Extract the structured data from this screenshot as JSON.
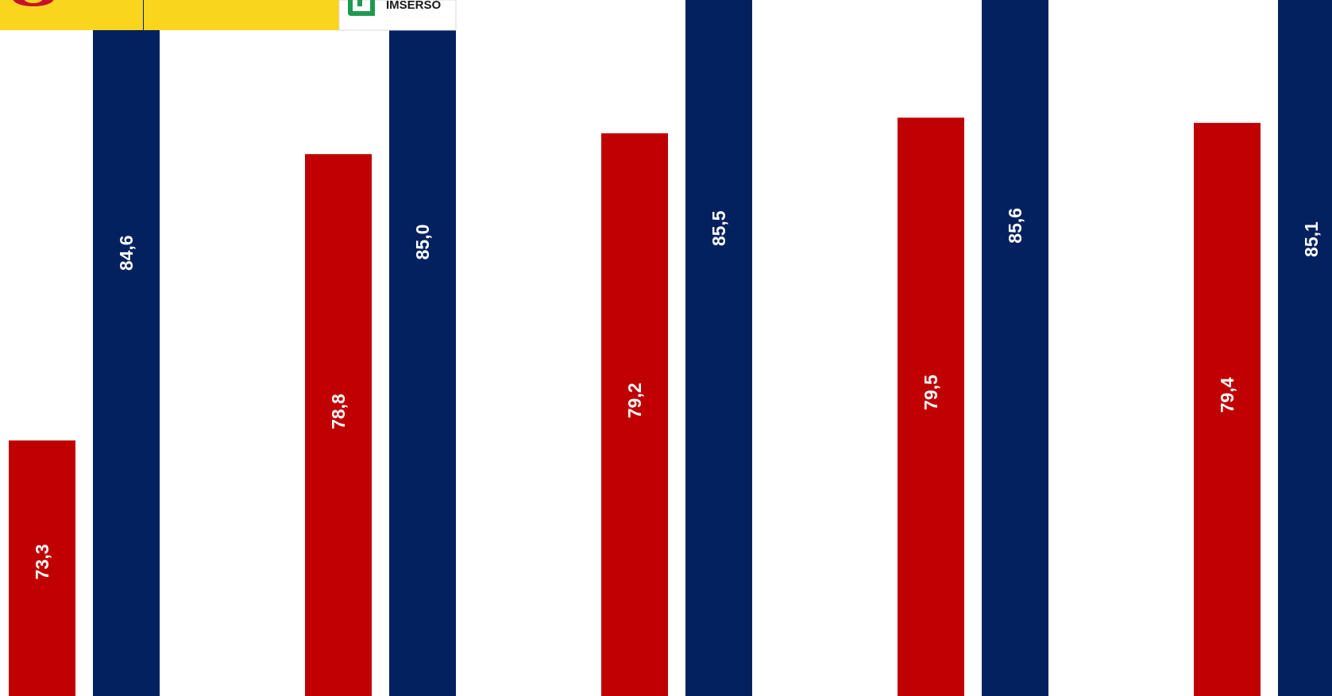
{
  "header": {
    "logo_text": "IMSERSO",
    "banner_color": "#F9D51E",
    "logo_green": "#1E9A50",
    "crest_colors": [
      "#C8102E",
      "#F9D51E"
    ]
  },
  "chart_data": {
    "type": "bar",
    "title": "",
    "xlabel": "",
    "ylabel": "",
    "categories": [
      "",
      "",
      "",
      "",
      ""
    ],
    "series": [
      {
        "color": "#C00000",
        "values": [
          73.3,
          78.8,
          79.2,
          79.5,
          79.4
        ],
        "labels": [
          "73,3",
          "78,8",
          "79,2",
          "79,5",
          "79,4"
        ]
      },
      {
        "color": "#03215F",
        "values": [
          84.6,
          85.0,
          85.5,
          85.6,
          85.1
        ],
        "labels": [
          "84,6",
          "85,0",
          "85,5",
          "85,6",
          "85,1"
        ]
      }
    ],
    "data_labels": "vertical, inside bar, white",
    "grid": false,
    "legend": "none"
  }
}
